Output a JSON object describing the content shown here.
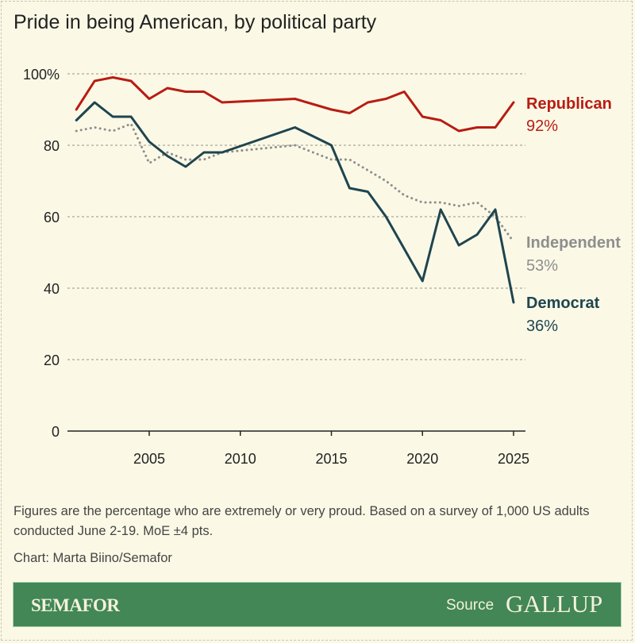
{
  "chart_data": {
    "type": "line",
    "title": "Pride in being American, by political party",
    "x": [
      2001,
      2002,
      2003,
      2004,
      2005,
      2006,
      2007,
      2008,
      2009,
      2013,
      2015,
      2016,
      2017,
      2018,
      2019,
      2020,
      2021,
      2022,
      2023,
      2024,
      2025
    ],
    "xlim": [
      2000.6,
      2025.7
    ],
    "ylim": [
      0,
      100
    ],
    "yticks": [
      0,
      20,
      40,
      60,
      80,
      100
    ],
    "ytick_labels": [
      "0",
      "20",
      "40",
      "60",
      "80",
      "100%"
    ],
    "xticks": [
      2005,
      2010,
      2015,
      2020,
      2025
    ],
    "xtick_labels": [
      "2005",
      "2010",
      "2015",
      "2020",
      "2025"
    ],
    "grid": "horizontal dotted",
    "series": [
      {
        "name": "Republican",
        "end_label": "92%",
        "color": "#b81c13",
        "style": "solid",
        "values": [
          90,
          98,
          99,
          98,
          93,
          96,
          95,
          95,
          92,
          93,
          90,
          89,
          92,
          93,
          95,
          88,
          87,
          84,
          85,
          85,
          92
        ]
      },
      {
        "name": "Independent",
        "end_label": "53%",
        "color": "#8e8e8e",
        "style": "dotted",
        "values": [
          84,
          85,
          84,
          86,
          75,
          78,
          76,
          76,
          78,
          80,
          76,
          76,
          73,
          70,
          66,
          64,
          64,
          63,
          64,
          60,
          53
        ]
      },
      {
        "name": "Democrat",
        "end_label": "36%",
        "color": "#1f4550",
        "style": "solid",
        "values": [
          87,
          92,
          88,
          88,
          81,
          77,
          74,
          78,
          78,
          85,
          80,
          68,
          67,
          60,
          51,
          42,
          62,
          52,
          55,
          62,
          36
        ]
      }
    ]
  },
  "note": "Figures are the percentage who are extremely or very proud. Based on a survey of 1,000 US adults conducted June 2-19. MoE ±4 pts.",
  "credit": "Chart: Marta Biino/Semafor",
  "footer": {
    "brand": "SEMAFOR",
    "source_label": "Source",
    "source": "GALLUP",
    "accent": "#428755"
  }
}
